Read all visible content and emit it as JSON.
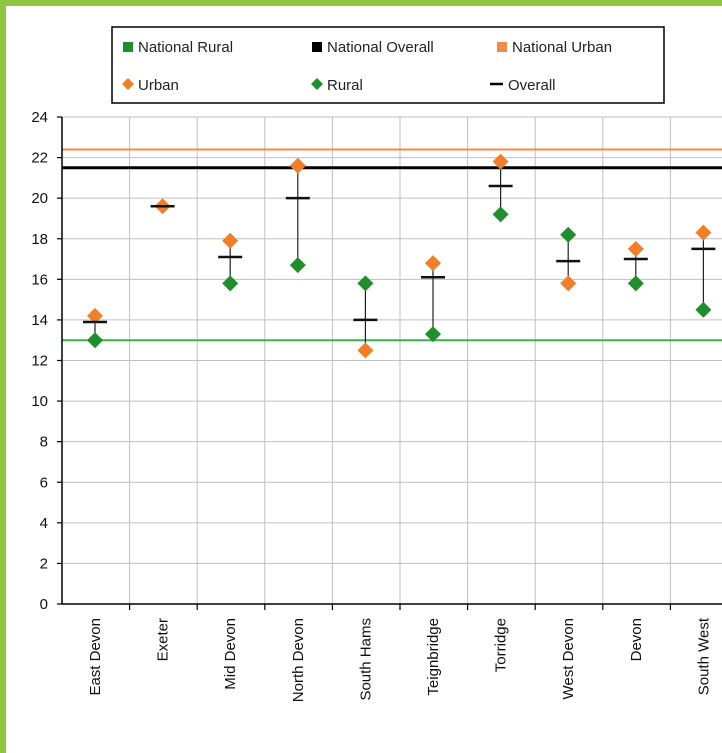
{
  "chart_data": {
    "type": "scatter",
    "title": "",
    "xlabel": "",
    "ylabel": "",
    "categories": [
      "East Devon",
      "Exeter",
      "Mid Devon",
      "North Devon",
      "South Hams",
      "Teignbridge",
      "Torridge",
      "West Devon",
      "Devon",
      "South West"
    ],
    "ylim": [
      0,
      24
    ],
    "yticks": [
      0,
      2,
      4,
      6,
      8,
      10,
      12,
      14,
      16,
      18,
      20,
      22,
      24
    ],
    "grid": true,
    "legend_position": "top",
    "series": [
      {
        "name": "Urban",
        "marker": "diamond",
        "color": "#f07f2a",
        "values": [
          14.2,
          19.6,
          17.9,
          21.6,
          12.5,
          16.8,
          21.8,
          15.8,
          17.5,
          18.3
        ]
      },
      {
        "name": "Rural",
        "marker": "diamond",
        "color": "#1e8f2c",
        "values": [
          13.0,
          null,
          15.8,
          16.7,
          15.8,
          13.3,
          19.2,
          18.2,
          15.8,
          14.5
        ]
      },
      {
        "name": "Overall",
        "marker": "dash",
        "color": "#111111",
        "values": [
          13.9,
          19.6,
          17.1,
          20.0,
          14.0,
          16.1,
          20.6,
          16.9,
          17.0,
          17.5
        ]
      }
    ],
    "reference_lines": [
      {
        "name": "National Rural",
        "color": "#35b34a",
        "value": 13.0
      },
      {
        "name": "National Overall",
        "color": "#000000",
        "value": 21.5
      },
      {
        "name": "National Urban",
        "color": "#f28a4a",
        "value": 22.4
      }
    ]
  },
  "legend": {
    "national_rural": "National Rural",
    "national_overall": "National Overall",
    "national_urban": "National Urban",
    "urban": "Urban",
    "rural": "Rural",
    "overall": "Overall"
  },
  "colors": {
    "border": "#8dc63f",
    "grid": "#c0c0c0"
  }
}
